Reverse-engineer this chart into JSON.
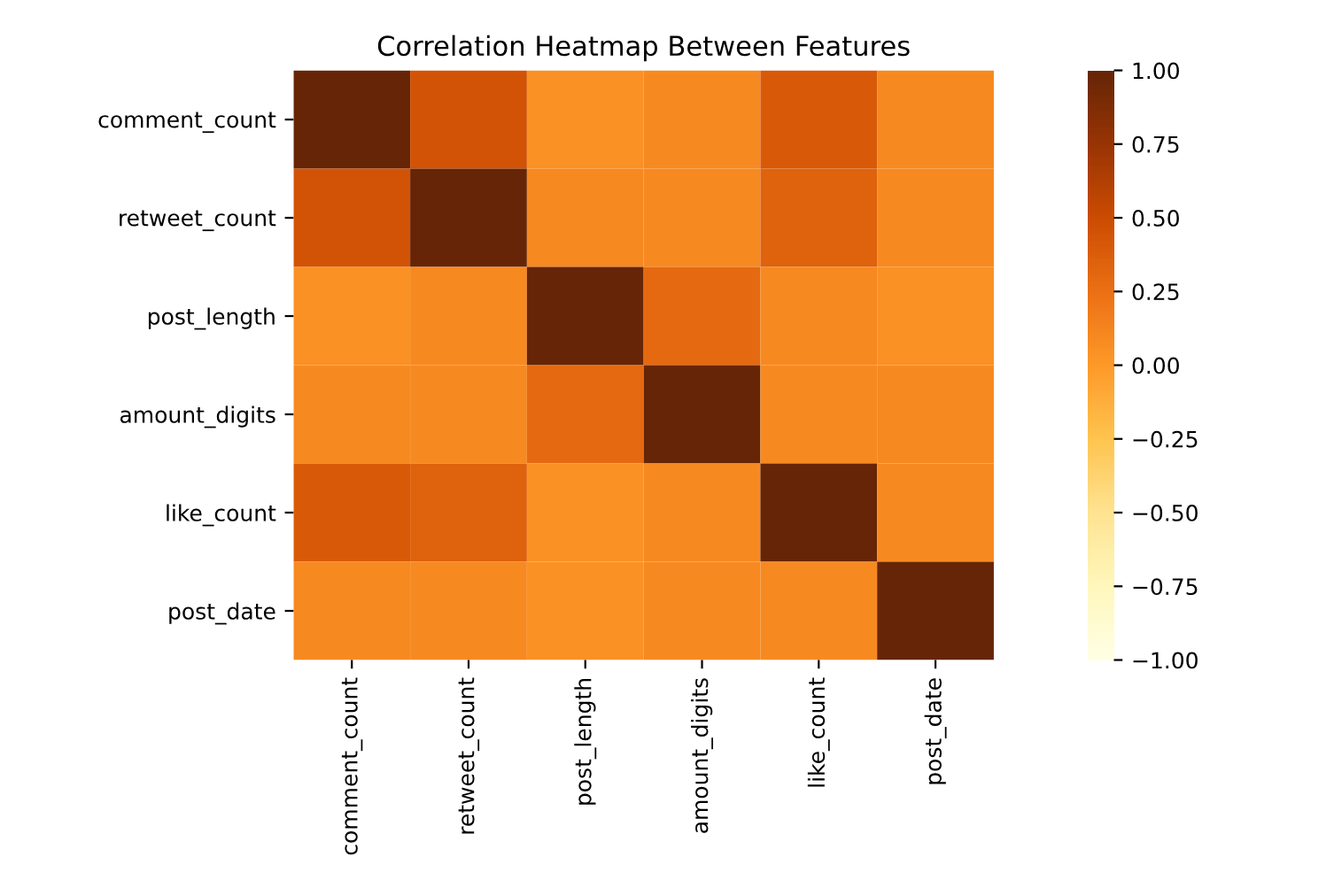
{
  "chart_data": {
    "type": "heatmap",
    "title": "Correlation Heatmap Between Features",
    "categories": [
      "comment_count",
      "retweet_count",
      "post_length",
      "amount_digits",
      "like_count",
      "post_date"
    ],
    "y_categories": [
      "comment_count",
      "retweet_count",
      "post_length",
      "amount_digits",
      "like_count",
      "post_date"
    ],
    "cells": [
      [
        1.0,
        0.45,
        0.05,
        0.1,
        0.4,
        0.1
      ],
      [
        0.45,
        1.0,
        0.1,
        0.1,
        0.35,
        0.1
      ],
      [
        0.05,
        0.1,
        1.0,
        0.3,
        0.1,
        0.05
      ],
      [
        0.1,
        0.1,
        0.3,
        1.0,
        0.1,
        0.1
      ],
      [
        0.4,
        0.35,
        0.05,
        0.1,
        1.0,
        0.1
      ],
      [
        0.1,
        0.1,
        0.05,
        0.1,
        0.1,
        1.0
      ]
    ],
    "clim": [
      -1,
      1
    ],
    "cticks": [
      {
        "value": -1,
        "label": "−1.00"
      },
      {
        "value": -0.75,
        "label": "−0.75"
      },
      {
        "value": -0.5,
        "label": "−0.50"
      },
      {
        "value": -0.25,
        "label": "−0.25"
      },
      {
        "value": 0,
        "label": "0.00"
      },
      {
        "value": 0.25,
        "label": "0.25"
      },
      {
        "value": 0.5,
        "label": "0.50"
      },
      {
        "value": 0.75,
        "label": "0.75"
      },
      {
        "value": 1,
        "label": "1.00"
      }
    ]
  }
}
